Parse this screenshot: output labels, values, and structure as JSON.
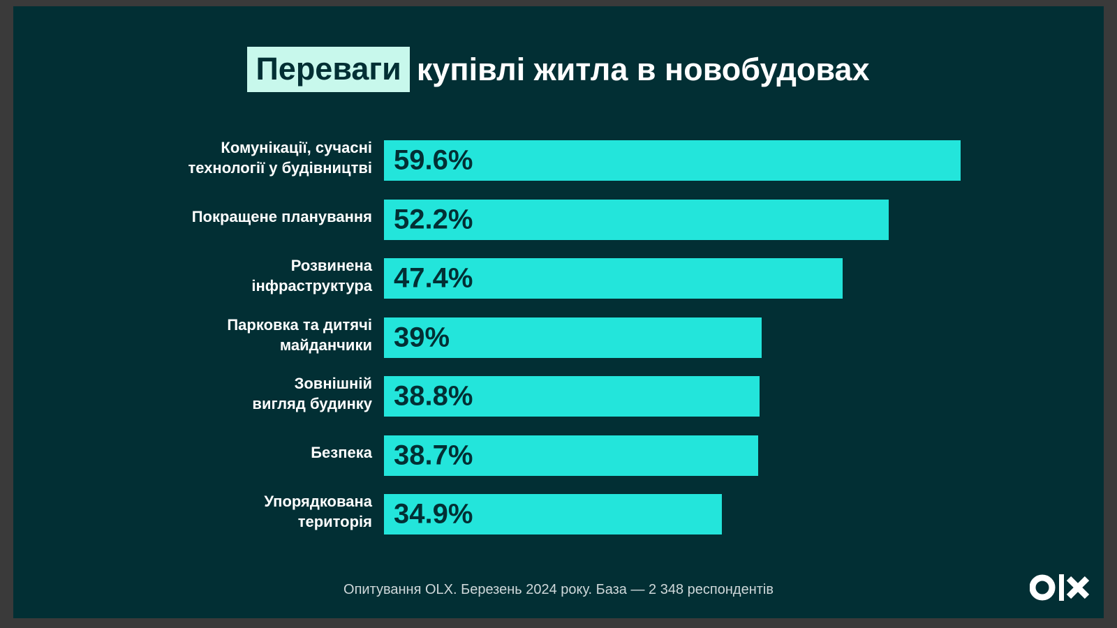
{
  "title": {
    "highlight": "Переваги",
    "rest": "купівлі житла в новобудовах"
  },
  "chart_data": {
    "type": "bar",
    "orientation": "horizontal",
    "categories": [
      "Комунікації, сучасні\nтехнології у будівництві",
      "Покращене планування",
      "Розвинена\nінфраструктура",
      "Парковка та дитячі\nмайданчики",
      "Зовнішній\nвигляд будинку",
      "Безпека",
      "Упорядкована\nтериторія"
    ],
    "values": [
      59.6,
      52.2,
      47.4,
      39,
      38.8,
      38.7,
      34.9
    ],
    "value_labels": [
      "59.6%",
      "52.2%",
      "47.4%",
      "39%",
      "38.8%",
      "38.7%",
      "34.9%"
    ],
    "xlim": [
      0,
      59.6
    ],
    "bar_color": "#23e5db"
  },
  "footnote": "Опитування OLX. Березень 2024 року. База — 2 348 респондентів",
  "logo": "OLX",
  "colors": {
    "background": "#022f34",
    "title_highlight": "#c8f8ec",
    "bar": "#23e5db"
  }
}
